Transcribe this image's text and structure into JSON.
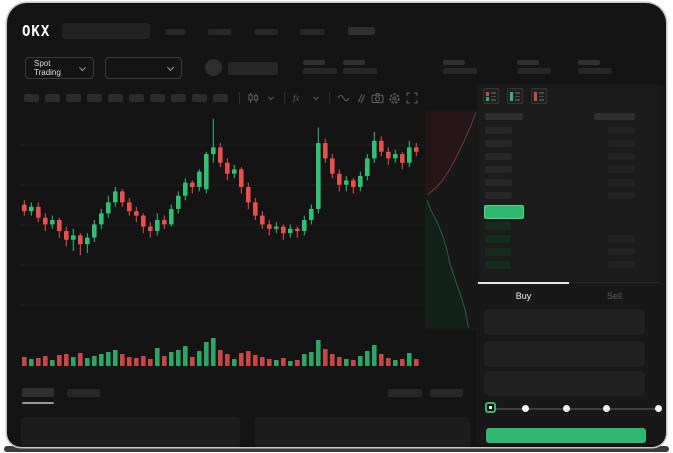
{
  "header": {
    "logo": "OKX",
    "market_selector_label": "Spot Trading",
    "nav_item_slots": 5,
    "stat_pair_slots": 5
  },
  "toolbar": {
    "timeframe_slots": 10,
    "icons": [
      "divider",
      "chart-type-candles-icon",
      "chevron-down-icon",
      "divider",
      "indicators-fx-icon",
      "chevron-down-icon",
      "divider",
      "wave-overlay-icon",
      "compare-icon",
      "camera-snapshot-icon",
      "settings-gear-icon",
      "fullscreen-icon"
    ]
  },
  "orderbook": {
    "mode_icons": [
      "book-combined-icon",
      "book-bids-icon",
      "book-asks-icon"
    ],
    "header_columns": 2,
    "ask_rows": 6,
    "bid_rows": 4,
    "bid_rows_with_amount": 3
  },
  "trade_panel": {
    "buy_label": "Buy",
    "sell_label": "Sell",
    "active_tab": "Buy",
    "input_slots": 3,
    "slider_stops": 5,
    "slider_value_index": 0
  },
  "bottom_bar": {
    "left_tab_slots": 2,
    "right_tab_slots": 2,
    "active_left_tab_index": 0,
    "panel_slots": 2
  },
  "colors": {
    "up": "#2fc074",
    "down": "#e8504f",
    "accent": "#2eb872",
    "accent_border": "#4cd68a",
    "bid_skeleton": "#152b1e",
    "grid": "#1e1e1e",
    "depth_ask_fill": "#241518",
    "depth_ask_line": "#6e3c3c",
    "depth_bid_fill": "#12201a",
    "depth_bid_line": "#2e5a45"
  },
  "chart_data": {
    "type": "candlestick",
    "title": "",
    "xlabel": "",
    "ylabel": "",
    "axis_labels_visible": false,
    "ylim": [
      0,
      100
    ],
    "grid": true,
    "candle_format": [
      "open",
      "high",
      "low",
      "close"
    ],
    "candles": [
      [
        57,
        59,
        52,
        54
      ],
      [
        54,
        58,
        52,
        56
      ],
      [
        56,
        58,
        49,
        51
      ],
      [
        51,
        53,
        45,
        48
      ],
      [
        48,
        52,
        46,
        50
      ],
      [
        50,
        51,
        42,
        45
      ],
      [
        45,
        47,
        38,
        41
      ],
      [
        41,
        46,
        36,
        43
      ],
      [
        43,
        44,
        34,
        39
      ],
      [
        39,
        44,
        35,
        42
      ],
      [
        42,
        50,
        40,
        48
      ],
      [
        48,
        55,
        46,
        53
      ],
      [
        53,
        61,
        51,
        58
      ],
      [
        58,
        65,
        56,
        63
      ],
      [
        63,
        64,
        56,
        58
      ],
      [
        58,
        60,
        52,
        54
      ],
      [
        54,
        56,
        49,
        52
      ],
      [
        52,
        53,
        44,
        47
      ],
      [
        47,
        49,
        42,
        45
      ],
      [
        45,
        53,
        43,
        50
      ],
      [
        50,
        52,
        46,
        48
      ],
      [
        48,
        57,
        47,
        55
      ],
      [
        55,
        63,
        53,
        61
      ],
      [
        61,
        69,
        59,
        67
      ],
      [
        67,
        68,
        62,
        65
      ],
      [
        65,
        73,
        63,
        72
      ],
      [
        64,
        81,
        62,
        80
      ],
      [
        80,
        96,
        76,
        83
      ],
      [
        83,
        85,
        74,
        76
      ],
      [
        76,
        78,
        68,
        71
      ],
      [
        71,
        75,
        69,
        73
      ],
      [
        73,
        74,
        62,
        65
      ],
      [
        65,
        67,
        55,
        58
      ],
      [
        58,
        60,
        50,
        52
      ],
      [
        52,
        54,
        46,
        48
      ],
      [
        48,
        50,
        43,
        46
      ],
      [
        46,
        49,
        44,
        47
      ],
      [
        47,
        48,
        41,
        44
      ],
      [
        44,
        48,
        42,
        46
      ],
      [
        46,
        47,
        42,
        45
      ],
      [
        45,
        52,
        43,
        50
      ],
      [
        50,
        57,
        48,
        55
      ],
      [
        55,
        92,
        53,
        85
      ],
      [
        85,
        87,
        76,
        78
      ],
      [
        78,
        80,
        69,
        71
      ],
      [
        71,
        73,
        63,
        66
      ],
      [
        66,
        70,
        63,
        68
      ],
      [
        68,
        69,
        62,
        65
      ],
      [
        65,
        72,
        63,
        70
      ],
      [
        70,
        80,
        68,
        78
      ],
      [
        78,
        90,
        76,
        86
      ],
      [
        86,
        88,
        79,
        81
      ],
      [
        81,
        83,
        75,
        78
      ],
      [
        78,
        82,
        76,
        80
      ],
      [
        80,
        81,
        73,
        76
      ],
      [
        76,
        86,
        74,
        83
      ],
      [
        83,
        85,
        79,
        81
      ]
    ],
    "volume": [
      9,
      7,
      8,
      10,
      6,
      11,
      12,
      9,
      13,
      8,
      10,
      12,
      14,
      16,
      12,
      9,
      8,
      10,
      7,
      18,
      10,
      14,
      16,
      20,
      9,
      15,
      24,
      28,
      16,
      12,
      7,
      13,
      15,
      11,
      9,
      7,
      6,
      8,
      5,
      6,
      12,
      14,
      26,
      17,
      12,
      9,
      7,
      6,
      10,
      15,
      21,
      12,
      8,
      6,
      7,
      13,
      7
    ],
    "depth": {
      "comment_scale": "points are [depth_fraction_of_zone_width, price_0_100]",
      "asks": [
        [
          0.96,
          99
        ],
        [
          0.85,
          92
        ],
        [
          0.72,
          85
        ],
        [
          0.58,
          78
        ],
        [
          0.44,
          72
        ],
        [
          0.33,
          68
        ],
        [
          0.22,
          65
        ],
        [
          0.1,
          62.5
        ],
        [
          0.05,
          61.5
        ]
      ],
      "bids": [
        [
          0.04,
          59
        ],
        [
          0.12,
          54
        ],
        [
          0.24,
          48.5
        ],
        [
          0.33,
          43
        ],
        [
          0.41,
          37
        ],
        [
          0.46,
          31
        ],
        [
          0.56,
          23.5
        ],
        [
          0.67,
          16
        ],
        [
          0.76,
          9
        ],
        [
          0.82,
          1
        ]
      ]
    }
  }
}
